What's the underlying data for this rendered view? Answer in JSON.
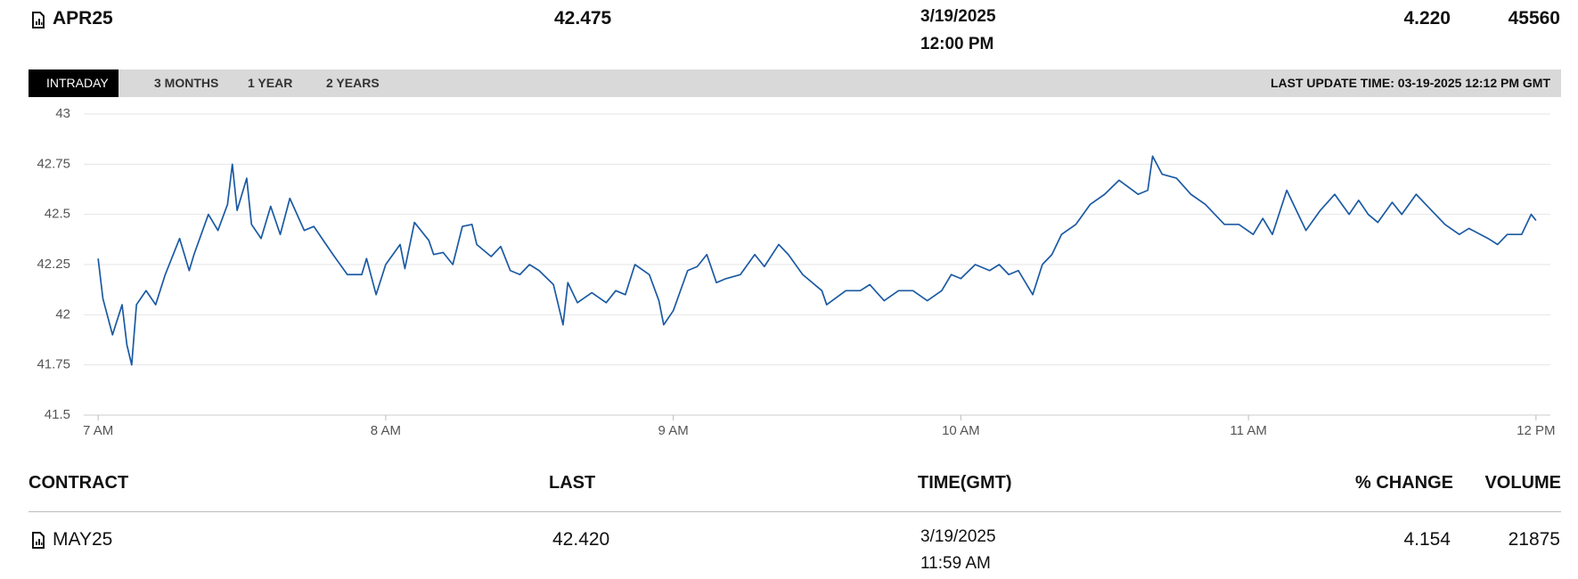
{
  "header": {
    "contract": "APR25",
    "last": "42.475",
    "date": "3/19/2025",
    "time": "12:00 PM",
    "change": "4.220",
    "volume": "45560"
  },
  "tabs": [
    "INTRADAY",
    "3 MONTHS",
    "1 YEAR",
    "2 YEARS"
  ],
  "last_update": "LAST UPDATE TIME: 03-19-2025 12:12 PM GMT",
  "chart_data": {
    "type": "line",
    "color": "#1b5aa3",
    "grid": true,
    "x": [
      420,
      421,
      423,
      425,
      426,
      427,
      428,
      430,
      432,
      434,
      437,
      439,
      440,
      443,
      445,
      447,
      448,
      449,
      451,
      452,
      454,
      456,
      458,
      460,
      463,
      465,
      467,
      469,
      472,
      475,
      476,
      478,
      480,
      483,
      484,
      486,
      489,
      490,
      492,
      494,
      496,
      498,
      499,
      502,
      504,
      506,
      508,
      510,
      512,
      515,
      517,
      518,
      520,
      523,
      526,
      528,
      530,
      532,
      535,
      537,
      538,
      540,
      543,
      545,
      547,
      549,
      551,
      554,
      557,
      559,
      562,
      564,
      567,
      571,
      572,
      576,
      579,
      581,
      584,
      587,
      590,
      593,
      596,
      598,
      600,
      603,
      606,
      608,
      610,
      612,
      615,
      617,
      619,
      621,
      624,
      627,
      630,
      633,
      637,
      639,
      640,
      642,
      645,
      648,
      651,
      655,
      658,
      661,
      663,
      665,
      668,
      672,
      675,
      678,
      681,
      683,
      685,
      687,
      690,
      692,
      695,
      697,
      699,
      701,
      704,
      706,
      710,
      712,
      714,
      717,
      719,
      720
    ],
    "values": [
      42.28,
      42.08,
      41.9,
      42.05,
      41.85,
      41.75,
      42.05,
      42.12,
      42.05,
      42.2,
      42.38,
      42.22,
      42.3,
      42.5,
      42.42,
      42.55,
      42.75,
      42.52,
      42.68,
      42.45,
      42.38,
      42.54,
      42.4,
      42.58,
      42.42,
      42.44,
      42.37,
      42.3,
      42.2,
      42.2,
      42.28,
      42.1,
      42.25,
      42.35,
      42.23,
      42.46,
      42.37,
      42.3,
      42.31,
      42.25,
      42.44,
      42.45,
      42.35,
      42.29,
      42.34,
      42.22,
      42.2,
      42.25,
      42.22,
      42.15,
      41.95,
      42.16,
      42.06,
      42.11,
      42.06,
      42.12,
      42.1,
      42.25,
      42.2,
      42.07,
      41.95,
      42.02,
      42.22,
      42.24,
      42.3,
      42.16,
      42.18,
      42.2,
      42.3,
      42.24,
      42.35,
      42.3,
      42.2,
      42.12,
      42.05,
      42.12,
      42.12,
      42.15,
      42.07,
      42.12,
      42.12,
      42.07,
      42.12,
      42.2,
      42.18,
      42.25,
      42.22,
      42.25,
      42.2,
      42.22,
      42.1,
      42.25,
      42.3,
      42.4,
      42.45,
      42.55,
      42.6,
      42.67,
      42.6,
      42.62,
      42.79,
      42.7,
      42.68,
      42.6,
      42.55,
      42.45,
      42.45,
      42.4,
      42.48,
      42.4,
      42.62,
      42.42,
      42.52,
      42.6,
      42.5,
      42.57,
      42.5,
      42.46,
      42.56,
      42.5,
      42.6,
      42.55,
      42.5,
      42.45,
      42.4,
      42.43,
      42.38,
      42.35,
      42.4,
      42.4,
      42.5,
      42.47
    ],
    "xlim": [
      417,
      723
    ],
    "ylim": [
      41.5,
      43
    ],
    "xticks": [
      {
        "value": 420,
        "label": "7 AM"
      },
      {
        "value": 480,
        "label": "8 AM"
      },
      {
        "value": 540,
        "label": "9 AM"
      },
      {
        "value": 600,
        "label": "10 AM"
      },
      {
        "value": 660,
        "label": "11 AM"
      },
      {
        "value": 720,
        "label": "12 PM"
      }
    ],
    "yticks": [
      43,
      42.75,
      42.5,
      42.25,
      42,
      41.75,
      41.5
    ]
  },
  "table": {
    "columns": [
      "CONTRACT",
      "LAST",
      "TIME(GMT)",
      "% CHANGE",
      "VOLUME"
    ],
    "rows": [
      {
        "contract": "MAY25",
        "last": "42.420",
        "date": "3/19/2025",
        "time": "11:59 AM",
        "change": "4.154",
        "volume": "21875"
      }
    ]
  }
}
